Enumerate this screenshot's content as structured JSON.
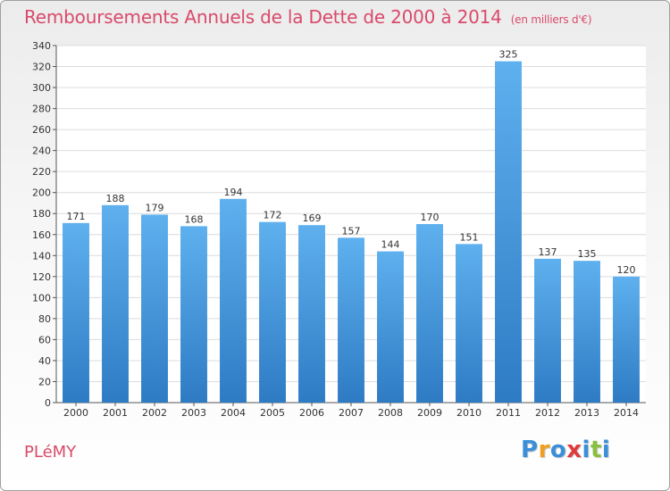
{
  "chart_data": {
    "type": "bar",
    "title": "Remboursements Annuels de la Dette de 2000 à 2014",
    "subtitle": "(en milliers d'€)",
    "categories": [
      "2000",
      "2001",
      "2002",
      "2003",
      "2004",
      "2005",
      "2006",
      "2007",
      "2008",
      "2009",
      "2010",
      "2011",
      "2012",
      "2013",
      "2014"
    ],
    "values": [
      171,
      188,
      179,
      168,
      194,
      172,
      169,
      157,
      144,
      170,
      151,
      325,
      137,
      135,
      120
    ],
    "ylim": [
      0,
      340
    ],
    "yticks": [
      0,
      20,
      40,
      60,
      80,
      100,
      120,
      140,
      160,
      180,
      200,
      220,
      240,
      260,
      280,
      300,
      320,
      340
    ],
    "grid": true,
    "bar_color": "#4f9fe0"
  },
  "footer": {
    "town": "PLéMY",
    "logo_letters": [
      "P",
      "r",
      "o",
      "x",
      "i",
      "t",
      "i"
    ],
    "logo_colors": [
      "#3a8fd8",
      "#f0a020",
      "#3a8fd8",
      "#e03a3a",
      "#3a8fd8",
      "#8ac040",
      "#3a8fd8"
    ]
  }
}
